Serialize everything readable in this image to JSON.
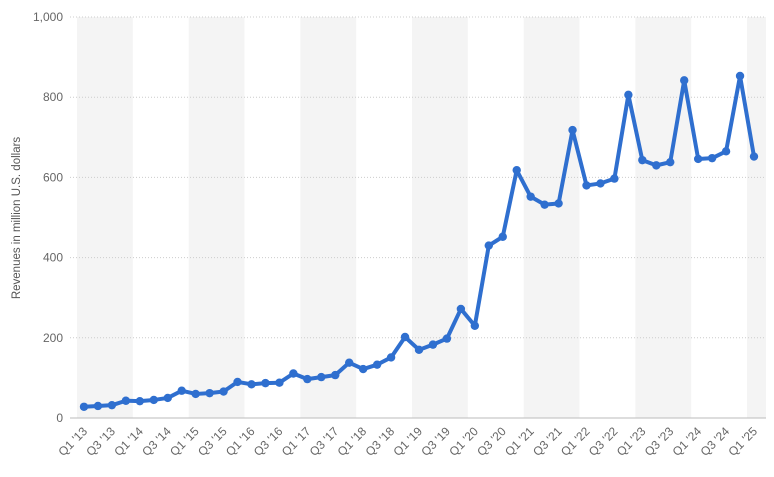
{
  "chart_data": {
    "type": "line",
    "title": "",
    "xlabel": "",
    "ylabel": "Revenues in million U.S. dollars",
    "ylim": [
      0,
      1000
    ],
    "yticks": [
      0,
      200,
      400,
      600,
      800,
      1000
    ],
    "ytick_labels": [
      "0",
      "200",
      "400",
      "600",
      "800",
      "1,000"
    ],
    "grid": "horizontal dotted",
    "colors": {
      "line": "#2f6fcf",
      "band": "#f4f4f4",
      "grid": "#cccccc"
    },
    "categories": [
      "Q1 '13",
      "Q2 '13",
      "Q3 '13",
      "Q4 '13",
      "Q1 '14",
      "Q2 '14",
      "Q3 '14",
      "Q4 '14",
      "Q1 '15",
      "Q2 '15",
      "Q3 '15",
      "Q4 '15",
      "Q1 '16",
      "Q2 '16",
      "Q3 '16",
      "Q4 '16",
      "Q1 '17",
      "Q2 '17",
      "Q3 '17",
      "Q4 '17",
      "Q1 '18",
      "Q2 '18",
      "Q3 '18",
      "Q4 '18",
      "Q1 '19",
      "Q2 '19",
      "Q3 '19",
      "Q4 '19",
      "Q1 '20",
      "Q2 '20",
      "Q3 '20",
      "Q4 '20",
      "Q1 '21",
      "Q2 '21",
      "Q3 '21",
      "Q4 '21",
      "Q1 '22",
      "Q2 '22",
      "Q3 '22",
      "Q4 '22",
      "Q1 '23",
      "Q2 '23",
      "Q3 '23",
      "Q4 '23",
      "Q1 '24",
      "Q2 '24",
      "Q3 '24",
      "Q4 '24",
      "Q1 '25"
    ],
    "xtick_labels": [
      "Q1 '13",
      "",
      "Q3 '13",
      "",
      "Q1 '14",
      "",
      "Q3 '14",
      "",
      "Q1 '15",
      "",
      "Q3 '15",
      "",
      "Q1 '16",
      "",
      "Q3 '16",
      "",
      "Q1 '17",
      "",
      "Q3 '17",
      "",
      "Q1 '18",
      "",
      "Q3 '18",
      "",
      "Q1 '19",
      "",
      "Q3 '19",
      "",
      "Q1 '20",
      "",
      "Q3 '20",
      "",
      "Q1 '21",
      "",
      "Q3 '21",
      "",
      "Q1 '22",
      "",
      "Q3 '22",
      "",
      "Q1 '23",
      "",
      "Q3 '23",
      "",
      "Q1 '24",
      "",
      "Q3 '24",
      "",
      "Q1 '25"
    ],
    "series": [
      {
        "values": [
          28,
          30,
          32,
          43,
          42,
          45,
          50,
          68,
          60,
          62,
          66,
          90,
          84,
          87,
          88,
          111,
          97,
          102,
          107,
          138,
          122,
          133,
          151,
          202,
          170,
          183,
          198,
          272,
          230,
          430,
          452,
          618,
          552,
          532,
          535,
          718,
          580,
          585,
          597,
          806,
          643,
          630,
          638,
          842,
          646,
          648,
          665,
          853,
          652
        ]
      }
    ]
  }
}
